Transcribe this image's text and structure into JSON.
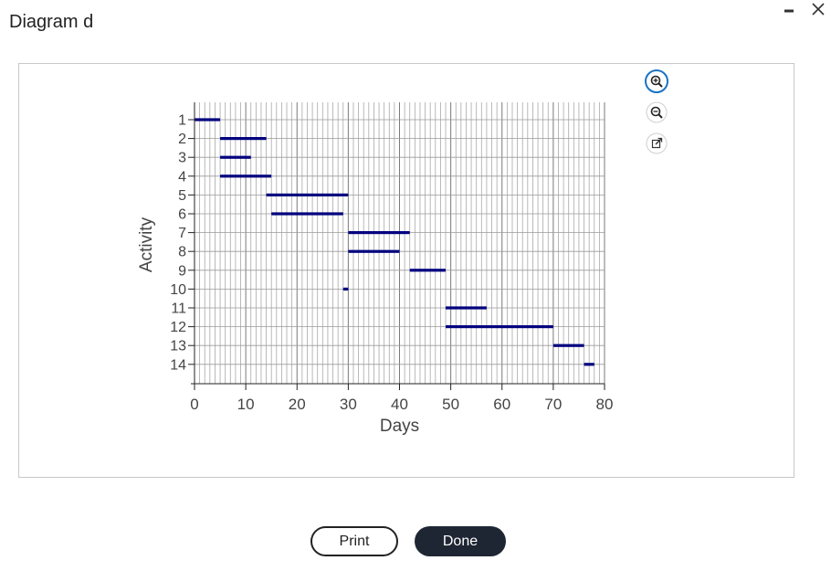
{
  "dialog": {
    "title": "Diagram d",
    "print_label": "Print",
    "done_label": "Done",
    "icons": {
      "minimize": "minimize-icon",
      "close": "close-icon",
      "zoom_in": "zoom-in-icon",
      "zoom_out": "zoom-out-icon",
      "open_external": "open-external-icon"
    }
  },
  "colors": {
    "bar": "#00007f",
    "accent": "#1a73c4",
    "done_bg": "#1f2633"
  },
  "chart_data": {
    "type": "gantt",
    "title": "",
    "xlabel": "Days",
    "ylabel": "Activity",
    "xlim": [
      0,
      80
    ],
    "xticks": [
      0,
      10,
      20,
      30,
      40,
      50,
      60,
      70,
      80
    ],
    "minor_grid_step": 1,
    "grid": true,
    "activities": [
      {
        "label": "1",
        "start": 0,
        "end": 5
      },
      {
        "label": "2",
        "start": 5,
        "end": 14
      },
      {
        "label": "3",
        "start": 5,
        "end": 11
      },
      {
        "label": "4",
        "start": 5,
        "end": 15
      },
      {
        "label": "5",
        "start": 14,
        "end": 30
      },
      {
        "label": "6",
        "start": 15,
        "end": 29
      },
      {
        "label": "7",
        "start": 30,
        "end": 42
      },
      {
        "label": "8",
        "start": 30,
        "end": 40
      },
      {
        "label": "9",
        "start": 42,
        "end": 49
      },
      {
        "label": "10",
        "start": 29,
        "end": 30
      },
      {
        "label": "11",
        "start": 49,
        "end": 57
      },
      {
        "label": "12",
        "start": 49,
        "end": 70
      },
      {
        "label": "13",
        "start": 70,
        "end": 76
      },
      {
        "label": "14",
        "start": 76,
        "end": 78
      }
    ]
  }
}
